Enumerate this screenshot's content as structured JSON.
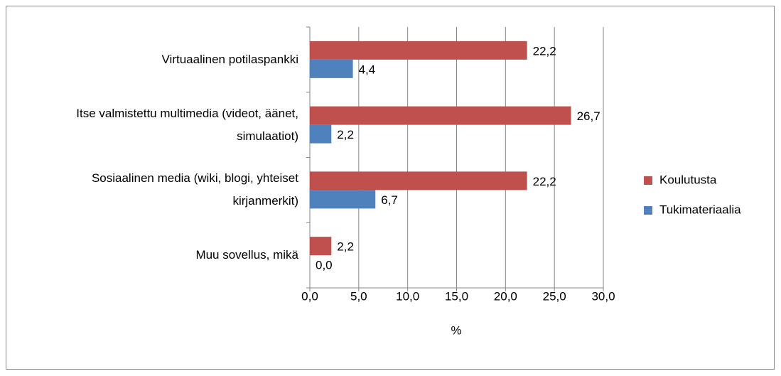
{
  "chart_data": {
    "type": "bar",
    "orientation": "horizontal",
    "categories": [
      "Virtuaalinen potilaspankki",
      "Itse valmistettu multimedia (videot, äänet, simulaatiot)",
      "Sosiaalinen media (wiki, blogi, yhteiset kirjanmerkit)",
      "Muu sovellus, mikä"
    ],
    "series": [
      {
        "name": "Koulutusta",
        "color": "#c0504d",
        "values": [
          22.2,
          26.7,
          22.2,
          2.2
        ],
        "value_labels": [
          "22,2",
          "26,7",
          "22,2",
          "2,2"
        ]
      },
      {
        "name": "Tukimateriaalia",
        "color": "#4f81bd",
        "values": [
          4.4,
          2.2,
          6.7,
          0.0
        ],
        "value_labels": [
          "4,4",
          "2,2",
          "6,7",
          "0,0"
        ]
      }
    ],
    "xlabel": "%",
    "xlim": [
      0,
      30
    ],
    "xticks": [
      {
        "value": 0,
        "label": "0,0"
      },
      {
        "value": 5,
        "label": "5,0"
      },
      {
        "value": 10,
        "label": "10,0"
      },
      {
        "value": 15,
        "label": "15,0"
      },
      {
        "value": 20,
        "label": "20,0"
      },
      {
        "value": 25,
        "label": "25,0"
      },
      {
        "value": 30,
        "label": "30,0"
      }
    ],
    "grid": true,
    "legend": "right"
  }
}
